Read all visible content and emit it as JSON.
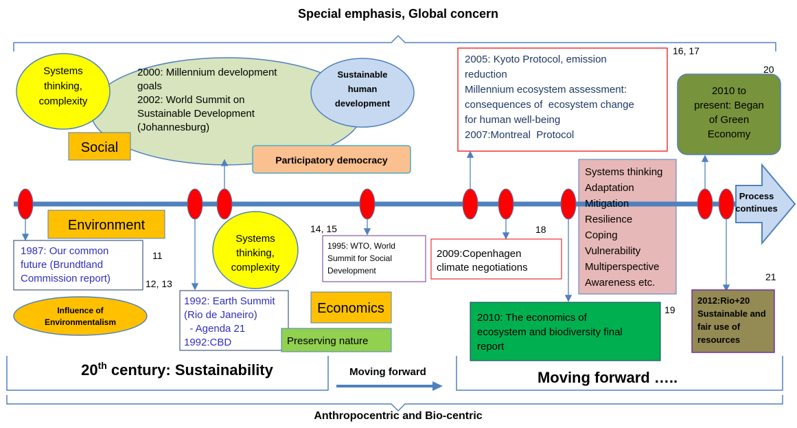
{
  "header": {
    "title": "Special emphasis, Global concern"
  },
  "footer": {
    "title": "Anthropocentric and Bio-centric"
  },
  "items": {
    "systems_top": [
      "Systems",
      "thinking,",
      "complexity"
    ],
    "mdg": [
      "2000: Millennium development",
      "goals",
      "2002: World Summit on",
      "Sustainable Development",
      "(Johannesburg)"
    ],
    "shd": [
      "Sustainable",
      "human",
      "development"
    ],
    "social": "Social",
    "participatory": "Participatory democracy",
    "kyoto": [
      "2005: Kyoto Protocol, emission",
      "reduction",
      "Millennium ecosystem assessment:",
      "consequences of  ecosystem change",
      "for human well-being",
      "2007:Montreal  Protocol"
    ],
    "ref_16_17": "16, 17",
    "ref_20": "20",
    "green_economy": [
      "2010 to",
      "present: Began",
      "of Green",
      "Economy"
    ],
    "process": [
      "Process",
      "continues"
    ],
    "environment": "Environment",
    "brundtland": [
      "1987: Our common",
      "future (Brundtland",
      "Commission report)"
    ],
    "ref_11": "11",
    "ref_12_13": "12, 13",
    "systems_mid": [
      "Systems",
      "thinking,",
      "complexity"
    ],
    "ref_14_15": "14, 15",
    "wto": [
      "1995: WTO, World",
      "Summit for Social",
      "Development"
    ],
    "copenhagen": [
      "2009:Copenhagen",
      "climate negotiations"
    ],
    "ref_18": "18",
    "concepts": [
      "Systems thinking",
      "Adaptation",
      "Mitigation",
      "Resilience",
      "Coping",
      "Vulnerability",
      "Multiperspective",
      "Awareness etc."
    ],
    "ref_21": "21",
    "rio20": [
      "2012:Rio+20",
      "Sustainable and",
      "fair use of",
      "resources"
    ],
    "ref_19": "19",
    "teeb": [
      "2010: The economics of",
      "ecosystem and biodiversity final",
      "report"
    ],
    "influence": [
      "Influence of",
      "Environmentalism"
    ],
    "earth_summit": [
      "1992: Earth Summit",
      "(Rio de Janeiro)",
      "  - Agenda 21",
      "1992:CBD"
    ],
    "economics": "Economics",
    "preserving": "Preserving nature",
    "century": {
      "number": "20",
      "suffix": "th",
      "rest": " century: Sustainability"
    },
    "moving_forward": "Moving forward",
    "moving_forward_dots": "Moving forward ….."
  }
}
